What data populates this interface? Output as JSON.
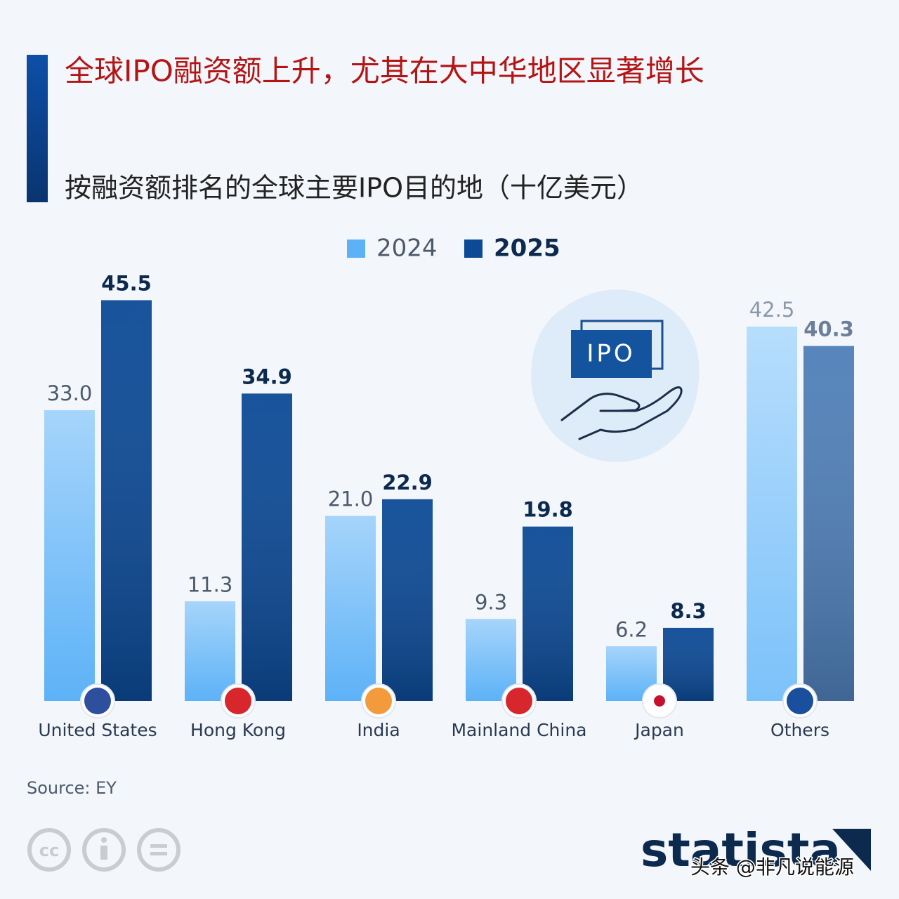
{
  "chart_data": {
    "type": "bar",
    "title": "全球IPO融资额上升，尤其在大中华地区显著增长",
    "subtitle": "按融资额排名的全球主要IPO目的地（十亿美元）",
    "categories": [
      "United States",
      "Hong Kong",
      "India",
      "Mainland China",
      "Japan",
      "Others"
    ],
    "series": [
      {
        "name": "2024",
        "color": "#5db2f7",
        "colors": [
          "#5db2f7",
          "#5db2f7",
          "#5db2f7",
          "#5db2f7",
          "#5db2f7",
          "#7cc2fa"
        ],
        "values": [
          33.0,
          11.3,
          21.0,
          9.3,
          6.2,
          42.5
        ],
        "value_labels": [
          "33.0",
          "11.3",
          "21.0",
          "9.3",
          "6.2",
          "42.5"
        ]
      },
      {
        "name": "2025",
        "color": "#0c4a96",
        "colors": [
          "#0c4a96",
          "#0c4a96",
          "#0c4a96",
          "#0c4a96",
          "#0c4a96",
          "#4f7fb8"
        ],
        "values": [
          45.5,
          34.9,
          22.9,
          19.8,
          8.3,
          40.3
        ],
        "value_labels": [
          "45.5",
          "34.9",
          "22.9",
          "19.8",
          "8.3",
          "40.3"
        ]
      }
    ],
    "ylim": [
      0,
      50
    ],
    "source": "Source: EY",
    "illustration_label": "IPO",
    "brand": "statista",
    "watermark": "头条 @非凡说能源"
  }
}
